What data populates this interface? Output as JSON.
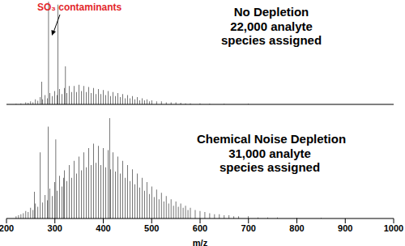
{
  "chart_data": [
    {
      "type": "bar",
      "title": "No Depletion",
      "subtitle": "22,000 analyte species assigned",
      "color": "#000000",
      "xlim": [
        200,
        1000
      ],
      "ylim": [
        0,
        100
      ],
      "tick_labels": false,
      "annotations": [
        {
          "text": "SO₃ contaminants",
          "color": "#e3262a"
        }
      ],
      "x": [
        220,
        230,
        240,
        245,
        250,
        255,
        260,
        265,
        270,
        273,
        275,
        280,
        285,
        287,
        290,
        295,
        300,
        305,
        306,
        310,
        315,
        320,
        322,
        325,
        330,
        335,
        340,
        345,
        350,
        355,
        360,
        365,
        370,
        375,
        380,
        385,
        390,
        395,
        400,
        405,
        410,
        415,
        420,
        425,
        430,
        435,
        440,
        445,
        450,
        455,
        460,
        465,
        470,
        475,
        480,
        485,
        490,
        495,
        500,
        510,
        520,
        530,
        540,
        550,
        560,
        570,
        580,
        600,
        620,
        650,
        700
      ],
      "values": [
        0.5,
        1,
        2,
        1.5,
        3,
        2,
        5,
        3.5,
        7,
        22,
        5,
        9,
        6,
        100,
        11,
        8,
        13,
        9,
        97,
        15,
        10,
        16,
        37,
        11,
        18,
        12,
        18,
        12,
        19,
        13,
        18,
        12,
        17,
        11,
        16,
        10,
        15,
        10,
        14,
        9,
        13,
        8,
        12,
        8,
        11,
        7,
        10,
        6,
        9,
        6,
        8,
        5,
        7,
        4,
        6,
        4,
        5,
        3,
        4,
        3,
        3,
        2,
        2,
        2,
        1.5,
        1,
        1,
        1,
        0.5,
        0.5,
        0.5
      ]
    },
    {
      "type": "bar",
      "title": "Chemical Noise Depletion",
      "subtitle": "31,000 analyte species assigned",
      "color": "#000000",
      "xlim": [
        200,
        1000
      ],
      "xticks": [
        200,
        300,
        400,
        500,
        600,
        700,
        800,
        900,
        1000
      ],
      "ylim": [
        0,
        100
      ],
      "tick_labels": "x",
      "x_label": "m/z",
      "x": [
        220,
        225,
        230,
        235,
        240,
        245,
        250,
        255,
        258,
        260,
        265,
        270,
        275,
        280,
        285,
        286,
        290,
        295,
        300,
        302,
        305,
        310,
        315,
        318,
        320,
        325,
        330,
        335,
        340,
        345,
        350,
        355,
        360,
        365,
        370,
        375,
        380,
        385,
        390,
        395,
        400,
        405,
        410,
        413,
        415,
        420,
        425,
        430,
        435,
        440,
        445,
        450,
        455,
        460,
        465,
        470,
        475,
        480,
        485,
        490,
        495,
        500,
        505,
        510,
        515,
        520,
        525,
        530,
        535,
        540,
        545,
        550,
        555,
        560,
        565,
        570,
        575,
        580,
        590,
        600,
        610,
        620,
        630,
        640,
        650,
        660,
        670,
        680,
        700,
        720,
        740,
        760,
        800,
        850
      ],
      "values": [
        2,
        3,
        4,
        5,
        7,
        6,
        10,
        8,
        25,
        14,
        11,
        62,
        15,
        22,
        17,
        86,
        28,
        21,
        34,
        74,
        26,
        40,
        30,
        38,
        45,
        35,
        50,
        38,
        54,
        42,
        58,
        45,
        62,
        48,
        66,
        50,
        70,
        52,
        68,
        50,
        66,
        48,
        64,
        94,
        46,
        62,
        44,
        58,
        42,
        54,
        38,
        50,
        35,
        46,
        32,
        42,
        29,
        38,
        26,
        34,
        23,
        30,
        20,
        27,
        18,
        24,
        16,
        21,
        14,
        18,
        12,
        16,
        11,
        14,
        10,
        12,
        8,
        10,
        8,
        7,
        6,
        5,
        4,
        4,
        3,
        3,
        2,
        2,
        2,
        1,
        1,
        1,
        0.5,
        0.5
      ]
    }
  ]
}
